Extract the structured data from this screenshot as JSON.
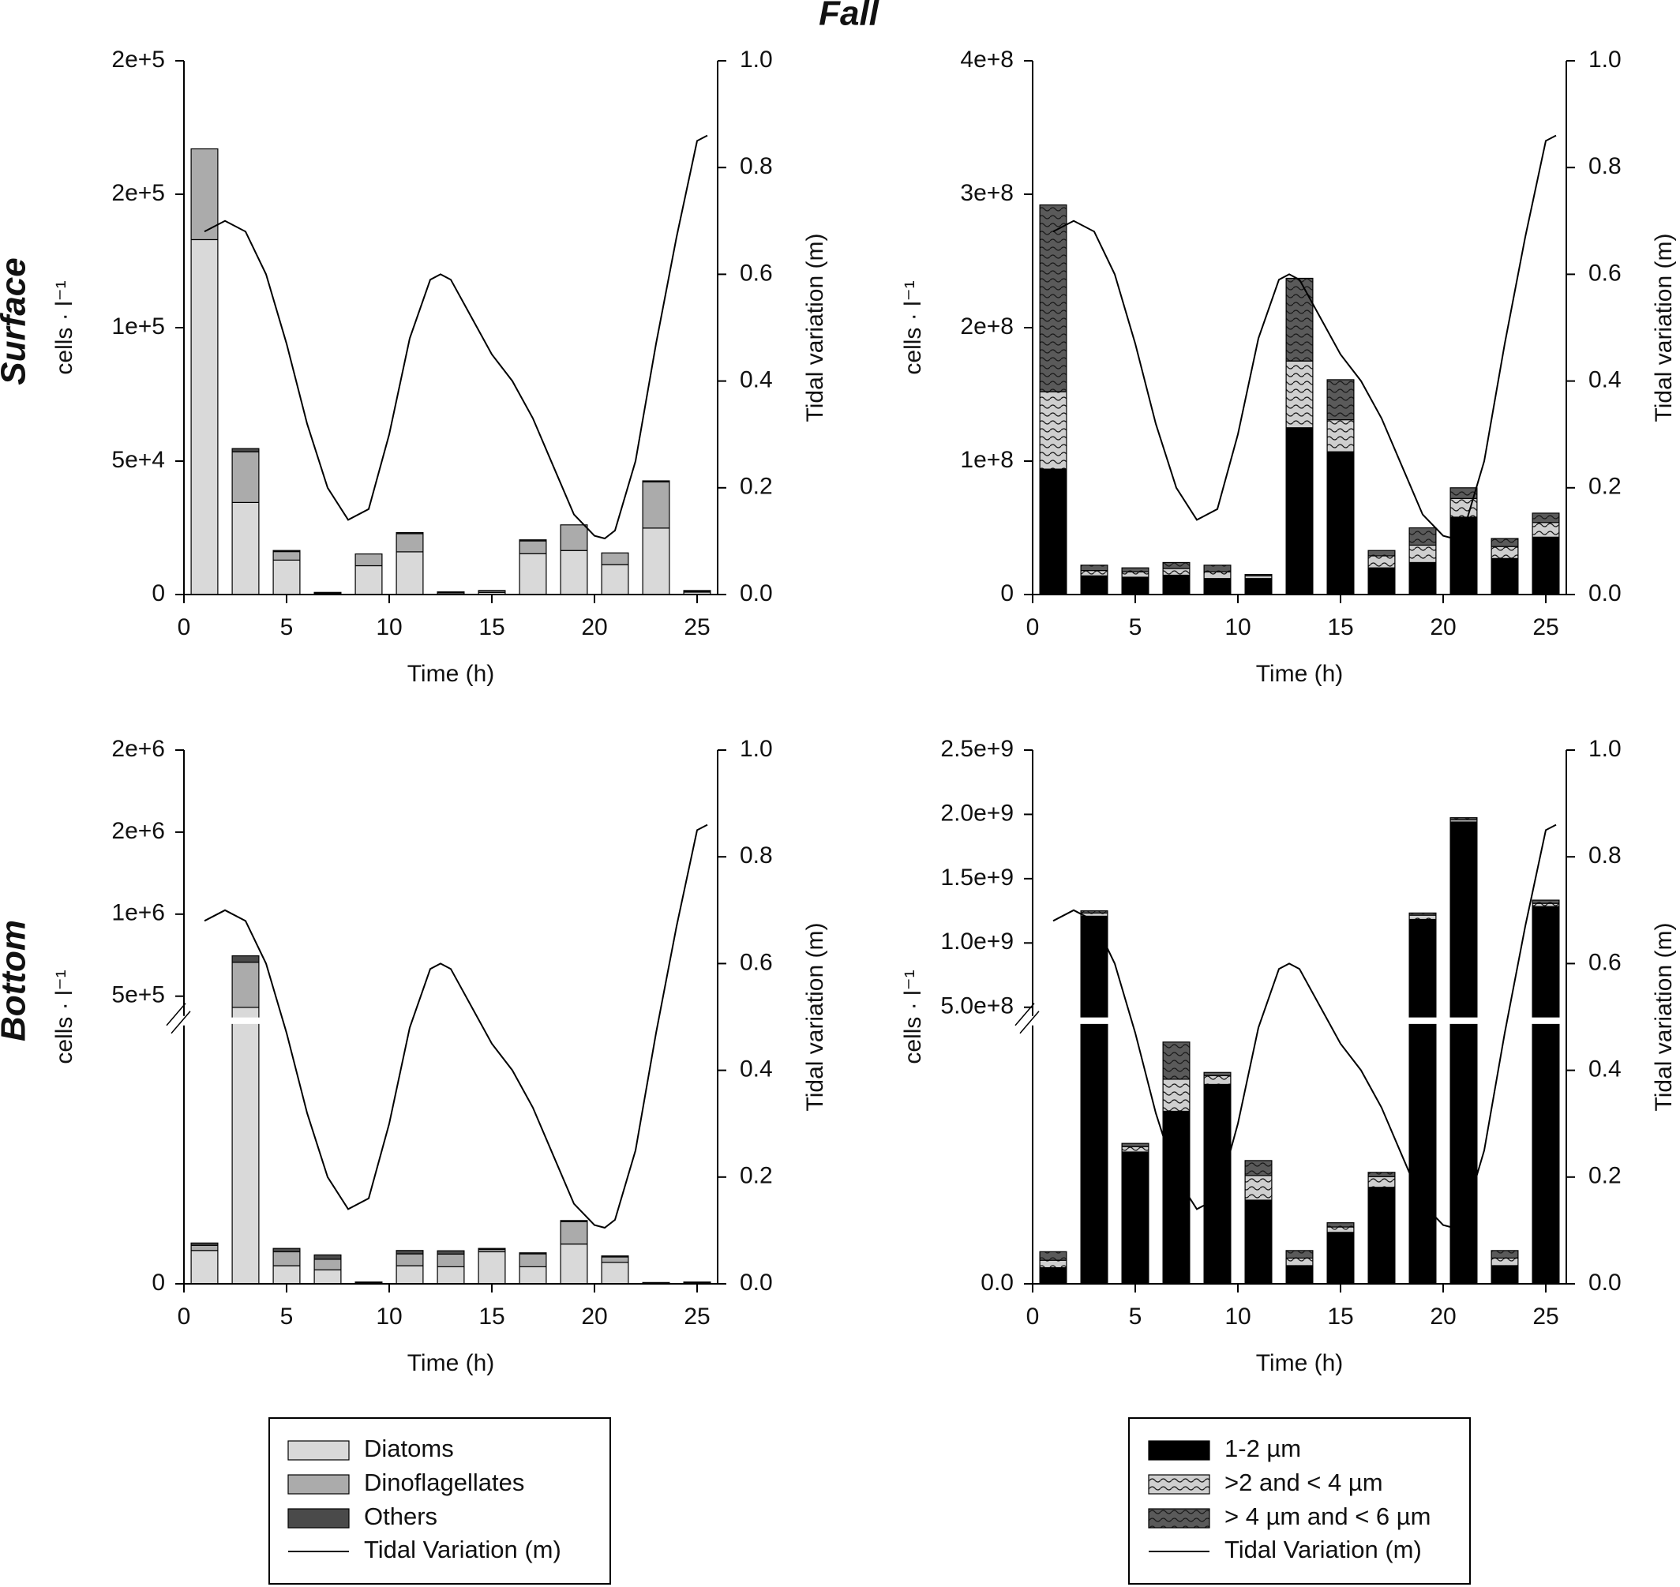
{
  "title": "Fall",
  "row_labels": [
    "Surface",
    "Bottom"
  ],
  "chart_data": [
    {
      "type": "stacked-bar-line",
      "xlabel": "Time (h)",
      "ylabel": "cells · l⁻¹",
      "y2label": "Tidal variation (m)",
      "xlim": [
        0,
        26
      ],
      "xticks": [
        0,
        5,
        10,
        15,
        20,
        25
      ],
      "ylim": [
        0,
        200000
      ],
      "yticks": [
        0,
        {
          "value": 50000,
          "label": "5e+4"
        },
        {
          "value": 100000,
          "label": "1e+5"
        },
        {
          "value": 150000,
          "label": "2e+5"
        },
        {
          "value": 200000,
          "label": "2e+5"
        }
      ],
      "y2lim": [
        0,
        1
      ],
      "y2ticks": [
        {
          "value": 0,
          "label": "0.0"
        },
        0.2,
        0.4,
        0.6,
        0.8,
        {
          "value": 1,
          "label": "1.0"
        }
      ],
      "x": [
        1,
        3,
        5,
        7,
        9,
        11,
        13,
        15,
        17,
        19,
        21,
        23,
        25
      ],
      "series": [
        {
          "color": "#d9d9d9",
          "values": [
            133000,
            34500,
            12900,
            500,
            10800,
            16000,
            600,
            800,
            15300,
            16500,
            11200,
            24900,
            900
          ]
        },
        {
          "color": "#ababab",
          "values": [
            34000,
            19000,
            3200,
            200,
            4400,
            6800,
            300,
            600,
            4800,
            9600,
            4400,
            17300,
            300
          ]
        },
        {
          "color": "#4a4a4a",
          "values": [
            0,
            1200,
            400,
            100,
            0,
            400,
            100,
            100,
            400,
            0,
            0,
            400,
            300
          ]
        },
        {
          "type": "line",
          "axis": "y2",
          "color": "#000000",
          "x": [
            1,
            2,
            3,
            4,
            5,
            6,
            7,
            8,
            9,
            10,
            11,
            12,
            12.5,
            13,
            14,
            15,
            16,
            17,
            18,
            19,
            20,
            20.5,
            21,
            22,
            23,
            24,
            25,
            25.5
          ],
          "values": [
            0.68,
            0.7,
            0.68,
            0.6,
            0.47,
            0.32,
            0.2,
            0.14,
            0.16,
            0.3,
            0.48,
            0.59,
            0.6,
            0.59,
            0.52,
            0.45,
            0.4,
            0.33,
            0.24,
            0.15,
            0.11,
            0.105,
            0.12,
            0.25,
            0.47,
            0.67,
            0.85,
            0.86
          ]
        }
      ]
    },
    {
      "type": "stacked-bar-line",
      "xlabel": "Time (h)",
      "ylabel": "cells · l⁻¹",
      "y2label": "Tidal variation (m)",
      "xlim": [
        0,
        26
      ],
      "xticks": [
        0,
        5,
        10,
        15,
        20,
        25
      ],
      "ylim": [
        0,
        400000000
      ],
      "yticks": [
        0,
        {
          "value": 100000000,
          "label": "1e+8"
        },
        {
          "value": 200000000,
          "label": "2e+8"
        },
        {
          "value": 300000000,
          "label": "3e+8"
        },
        {
          "value": 400000000,
          "label": "4e+8"
        }
      ],
      "y2lim": [
        0,
        1
      ],
      "y2ticks": [
        {
          "value": 0,
          "label": "0.0"
        },
        0.2,
        0.4,
        0.6,
        0.8,
        {
          "value": 1,
          "label": "1.0"
        }
      ],
      "x": [
        1,
        3,
        5,
        7,
        9,
        11,
        13,
        15,
        17,
        19,
        21,
        23,
        25
      ],
      "series": [
        {
          "color": "#000000",
          "values": [
            94000000,
            14000000,
            13000000,
            14500000,
            12000000,
            12000000,
            125000000,
            107000000,
            20000000,
            24000000,
            58000000,
            27000000,
            43000000
          ]
        },
        {
          "color": "#cfcfcf",
          "pattern": "wave",
          "values": [
            58000000,
            4000000,
            4000000,
            5000000,
            5000000,
            2000000,
            50000000,
            24000000,
            9000000,
            13000000,
            14000000,
            9000000,
            11000000
          ]
        },
        {
          "color": "#5a5a5a",
          "pattern": "wave",
          "values": [
            140000000,
            4000000,
            3000000,
            4500000,
            5000000,
            1000000,
            62000000,
            30000000,
            4000000,
            13000000,
            8000000,
            6000000,
            7000000
          ]
        },
        {
          "type": "line",
          "axis": "y2",
          "color": "#000000",
          "x": [
            1,
            2,
            3,
            4,
            5,
            6,
            7,
            8,
            9,
            10,
            11,
            12,
            12.5,
            13,
            14,
            15,
            16,
            17,
            18,
            19,
            20,
            20.5,
            21,
            22,
            23,
            24,
            25,
            25.5
          ],
          "values": [
            0.68,
            0.7,
            0.68,
            0.6,
            0.47,
            0.32,
            0.2,
            0.14,
            0.16,
            0.3,
            0.48,
            0.59,
            0.6,
            0.59,
            0.52,
            0.45,
            0.4,
            0.33,
            0.24,
            0.15,
            0.11,
            0.105,
            0.12,
            0.25,
            0.47,
            0.67,
            0.85,
            0.86
          ]
        }
      ]
    },
    {
      "type": "stacked-bar-line",
      "xlabel": "Time (h)",
      "ylabel": "cells · l⁻¹",
      "y2label": "Tidal variation (m)",
      "xlim": [
        0,
        26
      ],
      "xticks": [
        0,
        5,
        10,
        15,
        20,
        25
      ],
      "ylim": [
        0,
        2000000
      ],
      "ybreak": [
        100000,
        380000
      ],
      "yticks": [
        0,
        {
          "value": 500000,
          "label": "5e+5"
        },
        {
          "value": 1000000,
          "label": "1e+6"
        },
        {
          "value": 1500000,
          "label": "2e+6"
        },
        {
          "value": 2000000,
          "label": "2e+6"
        }
      ],
      "y2lim": [
        0,
        1
      ],
      "y2ticks": [
        {
          "value": 0,
          "label": "0.0"
        },
        0.2,
        0.4,
        0.6,
        0.8,
        {
          "value": 1,
          "label": "1.0"
        }
      ],
      "x": [
        1,
        3,
        5,
        7,
        9,
        11,
        13,
        15,
        17,
        19,
        21,
        23,
        25
      ],
      "series": [
        {
          "name": "Diatoms",
          "color": "#d9d9d9",
          "values": [
            12900,
            432000,
            7000,
            5400,
            500,
            7000,
            6600,
            12400,
            6600,
            15400,
            8300,
            300,
            400
          ]
        },
        {
          "name": "Dinoflagellates",
          "color": "#ababab",
          "values": [
            2000,
            275000,
            5400,
            4100,
            100,
            4600,
            4900,
            900,
            5000,
            8700,
            2100,
            100,
            100
          ]
        },
        {
          "name": "Others",
          "color": "#4a4a4a",
          "values": [
            900,
            39000,
            1300,
            1700,
            100,
            1300,
            1300,
            400,
            400,
            400,
            400,
            100,
            200
          ]
        },
        {
          "name": "Tidal Variation (m)",
          "type": "line",
          "axis": "y2",
          "color": "#000000",
          "x": [
            1,
            2,
            3,
            4,
            5,
            6,
            7,
            8,
            9,
            10,
            11,
            12,
            12.5,
            13,
            14,
            15,
            16,
            17,
            18,
            19,
            20,
            20.5,
            21,
            22,
            23,
            24,
            25,
            25.5
          ],
          "values": [
            0.68,
            0.7,
            0.68,
            0.6,
            0.47,
            0.32,
            0.2,
            0.14,
            0.16,
            0.3,
            0.48,
            0.59,
            0.6,
            0.59,
            0.52,
            0.45,
            0.4,
            0.33,
            0.24,
            0.15,
            0.11,
            0.105,
            0.12,
            0.25,
            0.47,
            0.67,
            0.85,
            0.86
          ]
        }
      ]
    },
    {
      "type": "stacked-bar-line",
      "xlabel": "Time (h)",
      "ylabel": "cells · l⁻¹",
      "y2label": "Tidal variation (m)",
      "xlim": [
        0,
        26
      ],
      "xticks": [
        0,
        5,
        10,
        15,
        20,
        25
      ],
      "ylim": [
        0,
        2500000000
      ],
      "ybreak": [
        250000000,
        433000000
      ],
      "yticks": [
        {
          "value": 0,
          "label": "0.0"
        },
        {
          "value": 500000000,
          "label": "5.0e+8"
        },
        {
          "value": 1000000000,
          "label": "1.0e+9"
        },
        {
          "value": 1500000000,
          "label": "1.5e+9"
        },
        {
          "value": 2000000000,
          "label": "2.0e+9"
        },
        {
          "value": 2500000000,
          "label": "2.5e+9"
        }
      ],
      "y2lim": [
        0,
        1
      ],
      "y2ticks": [
        {
          "value": 0,
          "label": "0.0"
        },
        0.2,
        0.4,
        0.6,
        0.8,
        {
          "value": 1,
          "label": "1.0"
        }
      ],
      "x": [
        1,
        3,
        5,
        7,
        9,
        11,
        13,
        15,
        17,
        19,
        21,
        23,
        25
      ],
      "series": [
        {
          "name": "1-2 µm",
          "color": "#000000",
          "values": [
            15600000,
            1208000000,
            127600000,
            167000000,
            193000000,
            81000000,
            17600000,
            49800000,
            93400000,
            1183000000,
            1941000000,
            17600000,
            1283000000
          ]
        },
        {
          "name": ">2 and < 4 µm",
          "color": "#cfcfcf",
          "pattern": "wave",
          "values": [
            7200000,
            25000000,
            5200000,
            31000000,
            8500000,
            23800000,
            7300000,
            5200000,
            10300000,
            33000000,
            16000000,
            7300000,
            25000000
          ]
        },
        {
          "name": "> 4 µm and < 6 µm",
          "color": "#5a5a5a",
          "pattern": "wave",
          "values": [
            8300000,
            17000000,
            3100000,
            36000000,
            3100000,
            14500000,
            7300000,
            4100000,
            4200000,
            17000000,
            17000000,
            7300000,
            25000000
          ]
        },
        {
          "name": "Tidal Variation (m)",
          "type": "line",
          "axis": "y2",
          "color": "#000000",
          "x": [
            1,
            2,
            3,
            4,
            5,
            6,
            7,
            8,
            9,
            10,
            11,
            12,
            12.5,
            13,
            14,
            15,
            16,
            17,
            18,
            19,
            20,
            20.5,
            21,
            22,
            23,
            24,
            25,
            25.5
          ],
          "values": [
            0.68,
            0.7,
            0.68,
            0.6,
            0.47,
            0.32,
            0.2,
            0.14,
            0.16,
            0.3,
            0.48,
            0.59,
            0.6,
            0.59,
            0.52,
            0.45,
            0.4,
            0.33,
            0.24,
            0.15,
            0.11,
            0.105,
            0.12,
            0.25,
            0.47,
            0.67,
            0.85,
            0.86
          ]
        }
      ]
    }
  ]
}
